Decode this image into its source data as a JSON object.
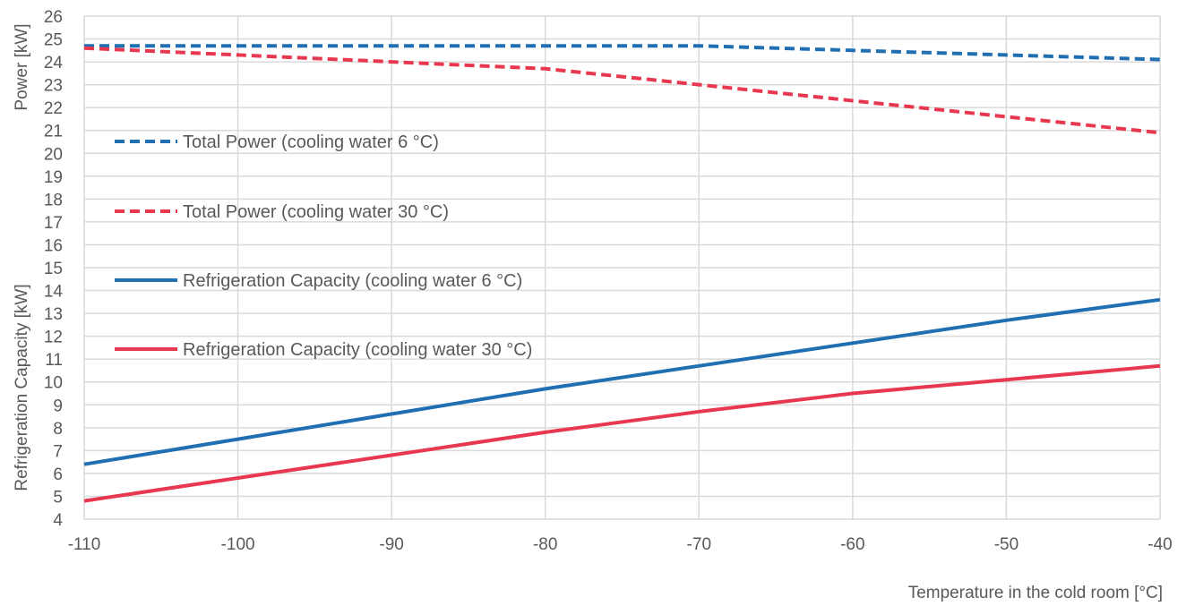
{
  "chart_data": {
    "type": "line",
    "xlabel": "Temperature in the cold room [°C]",
    "ylabel_top": "Power [kW]",
    "ylabel_bottom": "Refrigeration Capacity  [kW]",
    "xlim": [
      -110,
      -40
    ],
    "ylim": [
      4,
      26
    ],
    "x_ticks": [
      -110,
      -100,
      -90,
      -80,
      -70,
      -60,
      -50,
      -40
    ],
    "y_ticks": [
      4,
      5,
      6,
      7,
      8,
      9,
      10,
      11,
      12,
      13,
      14,
      15,
      16,
      17,
      18,
      19,
      20,
      21,
      22,
      23,
      24,
      25,
      26
    ],
    "grid": "both",
    "legend_position": "inside-left",
    "series": [
      {
        "name": "Total Power (cooling water 6 °C)",
        "color": "#1f6fb2",
        "style": "dashed",
        "x": [
          -110,
          -100,
          -90,
          -80,
          -70,
          -60,
          -50,
          -40
        ],
        "values": [
          24.7,
          24.7,
          24.7,
          24.7,
          24.7,
          24.5,
          24.3,
          24.1
        ]
      },
      {
        "name": "Total Power (cooling water 30 °C)",
        "color": "#e8384f",
        "style": "dashed",
        "x": [
          -110,
          -100,
          -90,
          -80,
          -70,
          -60,
          -50,
          -40
        ],
        "values": [
          24.6,
          24.3,
          24.0,
          23.7,
          23.0,
          22.3,
          21.6,
          20.9
        ]
      },
      {
        "name": "Refrigeration Capacity (cooling water 6 °C)",
        "color": "#1f6fb2",
        "style": "solid",
        "x": [
          -110,
          -100,
          -90,
          -80,
          -70,
          -60,
          -50,
          -40
        ],
        "values": [
          6.4,
          7.5,
          8.6,
          9.7,
          10.7,
          11.7,
          12.7,
          13.6
        ]
      },
      {
        "name": "Refrigeration Capacity (cooling water 30 °C)",
        "color": "#e8384f",
        "style": "solid",
        "x": [
          -110,
          -100,
          -90,
          -80,
          -70,
          -60,
          -50,
          -40
        ],
        "values": [
          4.8,
          5.8,
          6.8,
          7.8,
          8.7,
          9.5,
          10.1,
          10.7
        ]
      }
    ]
  }
}
